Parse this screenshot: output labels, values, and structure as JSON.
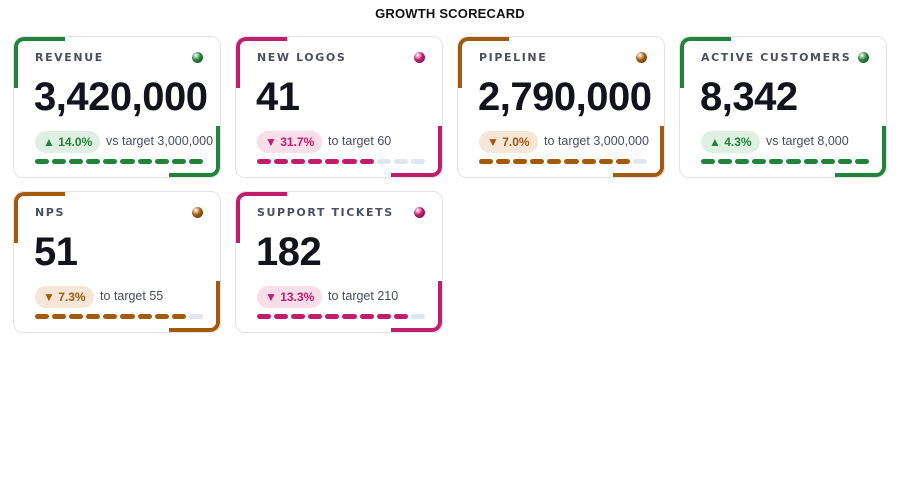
{
  "page": {
    "title": "GROWTH SCORECARD"
  },
  "colors": {
    "green": "#22843a",
    "magenta": "#c01d6d",
    "amber": "#a35a0c",
    "green_bg": "#dff0e2",
    "magenta_bg": "#f9dde9",
    "amber_bg": "#f5e6d7",
    "track": "#e3e5ee"
  },
  "cards": [
    {
      "label": "REVENUE",
      "value": "3,420,000",
      "delta": "▲ 14.0%",
      "target": "vs target 3,000,000",
      "tone": "green",
      "progress_segments_filled": 10,
      "progress_segments_total": 10
    },
    {
      "label": "NEW LOGOS",
      "value": "41",
      "delta": "▼ 31.7%",
      "target": "to target 60",
      "tone": "magenta",
      "progress_segments_filled": 7,
      "progress_segments_total": 10
    },
    {
      "label": "PIPELINE",
      "value": "2,790,000",
      "delta": "▼ 7.0%",
      "target": "to target 3,000,000",
      "tone": "amber",
      "progress_segments_filled": 9,
      "progress_segments_total": 10
    },
    {
      "label": "ACTIVE CUSTOMERS",
      "value": "8,342",
      "delta": "▲ 4.3%",
      "target": "vs target 8,000",
      "tone": "green",
      "progress_segments_filled": 10,
      "progress_segments_total": 10
    },
    {
      "label": "NPS",
      "value": "51",
      "delta": "▼ 7.3%",
      "target": "to target 55",
      "tone": "amber",
      "progress_segments_filled": 9,
      "progress_segments_total": 10
    },
    {
      "label": "SUPPORT TICKETS",
      "value": "182",
      "delta": "▼ 13.3%",
      "target": "to target 210",
      "tone": "magenta",
      "progress_segments_filled": 9,
      "progress_segments_total": 10
    }
  ]
}
